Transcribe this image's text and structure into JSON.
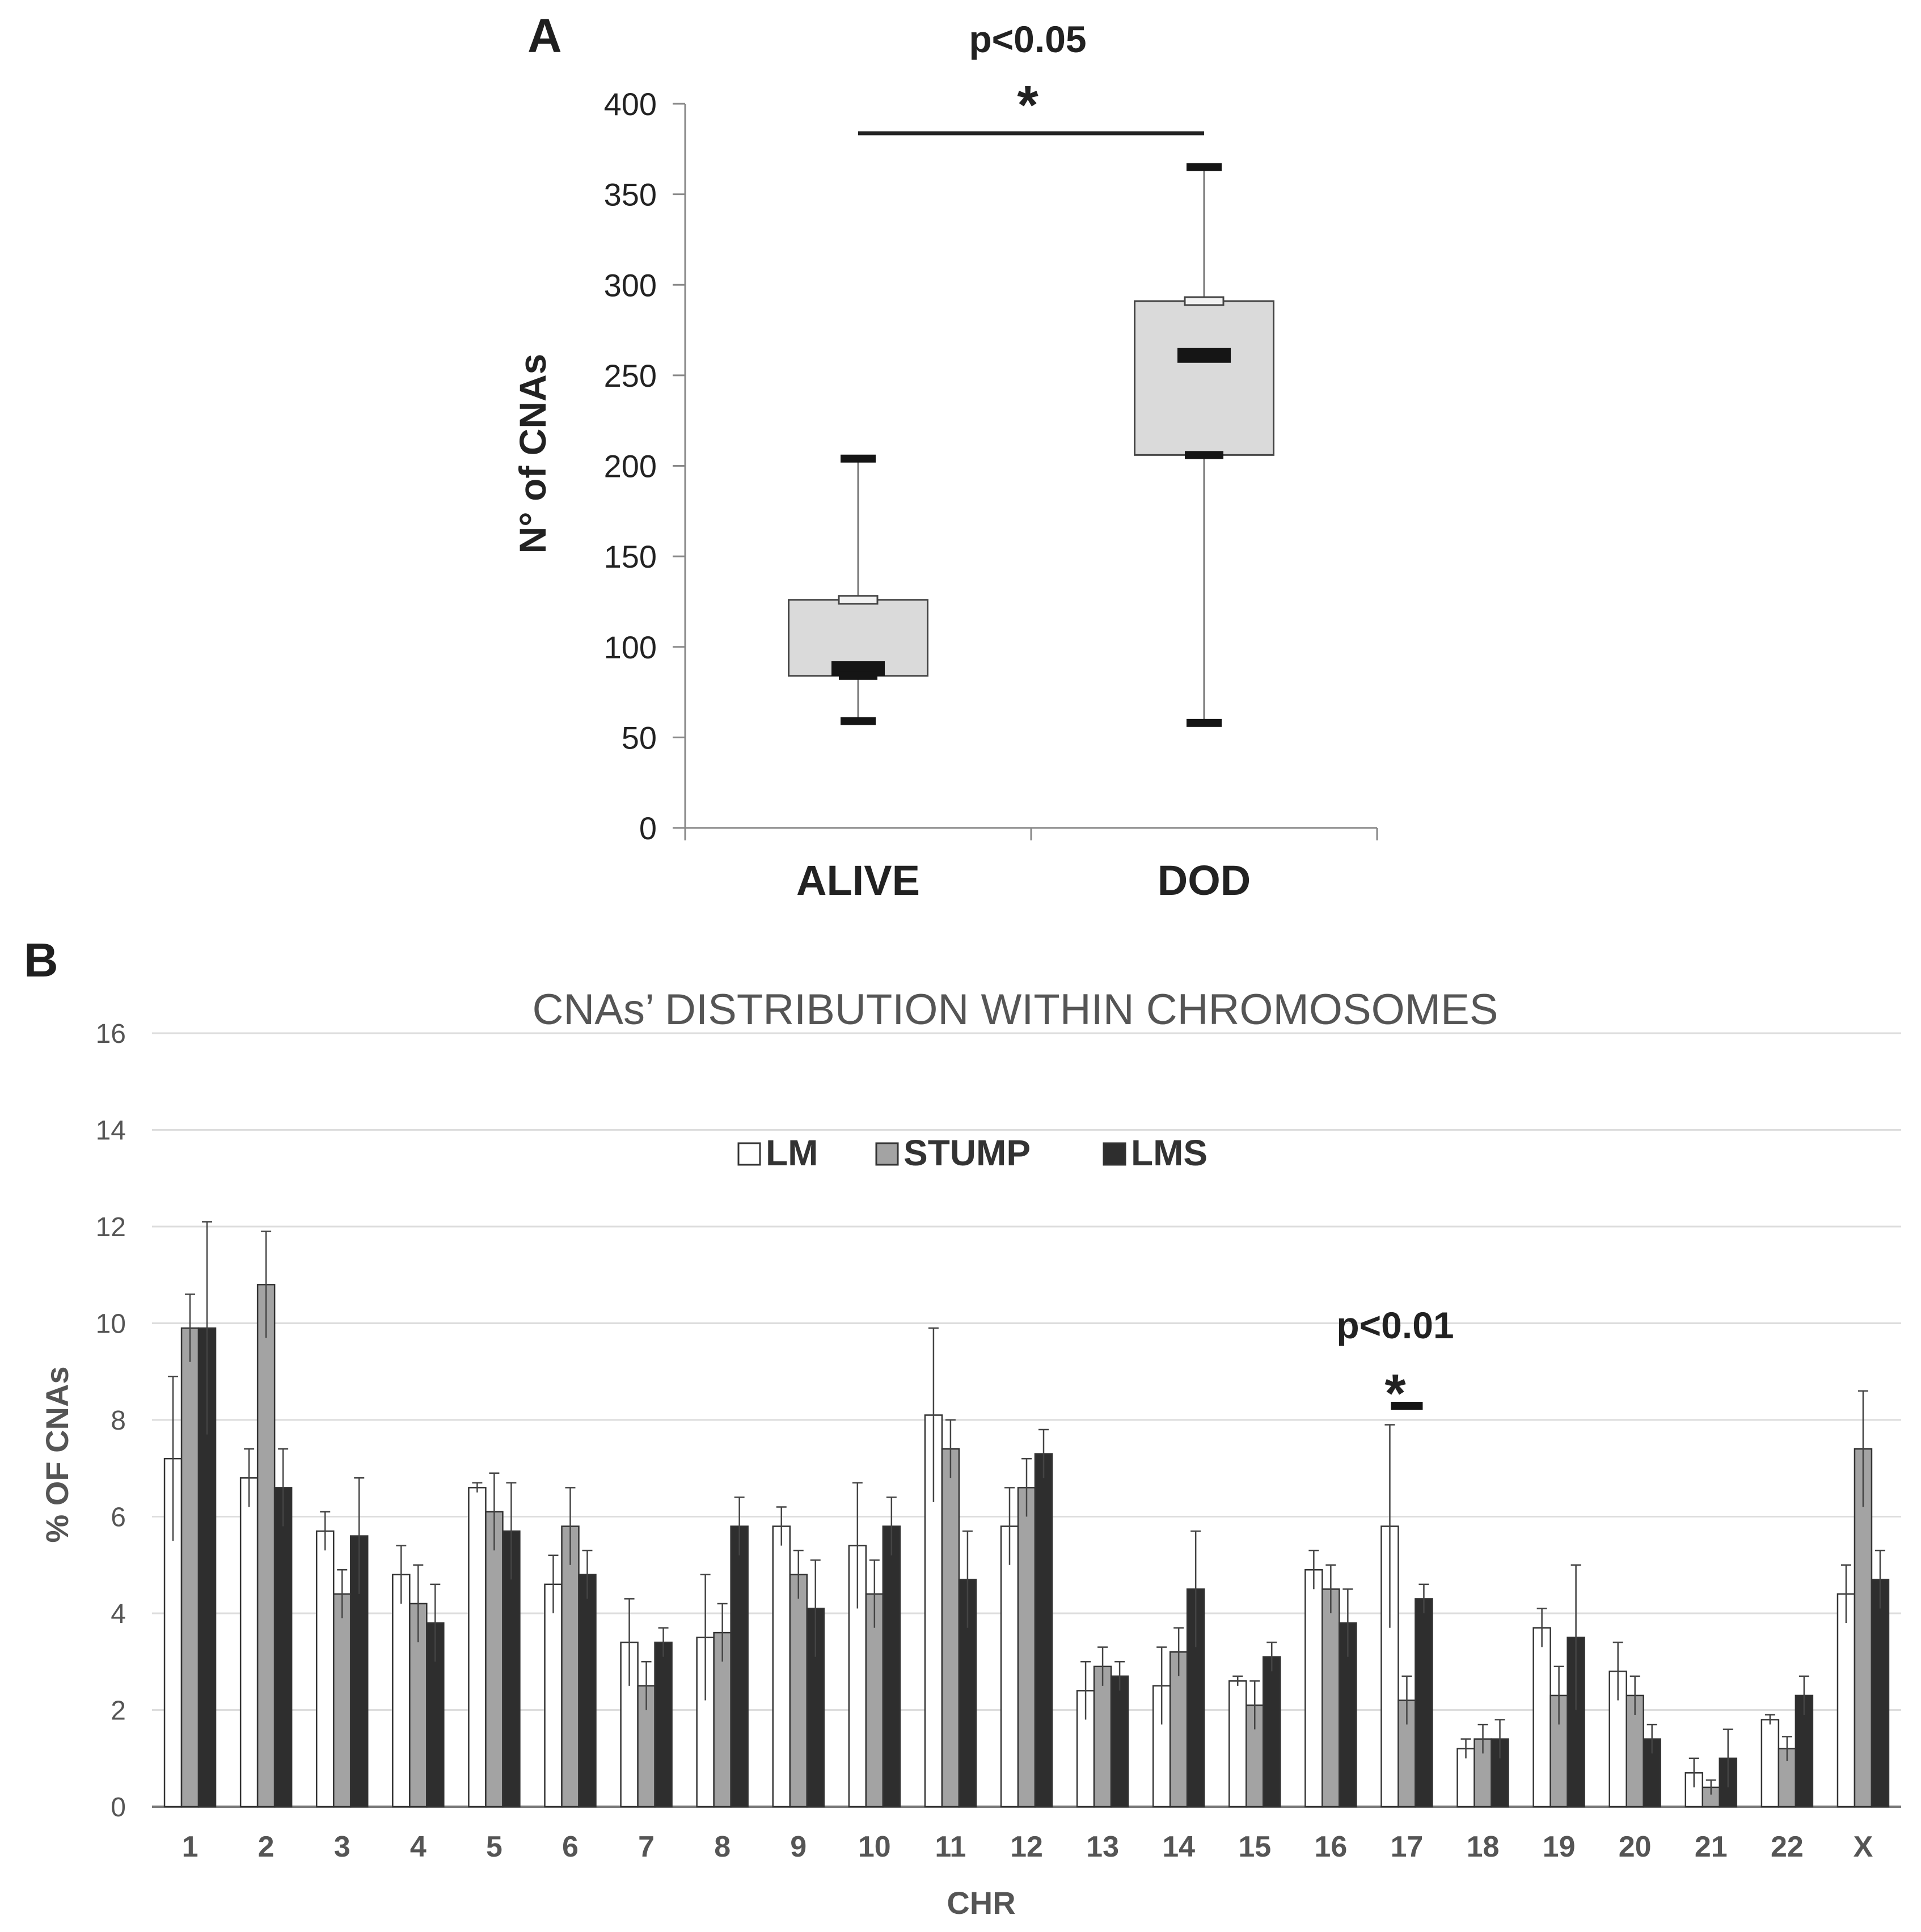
{
  "chart_data": [
    {
      "panel": "A",
      "type": "box",
      "title": "",
      "ylabel": "N° of CNAs",
      "xlabel": "",
      "ylim": [
        0,
        400
      ],
      "yticks": [
        "0",
        "50",
        "100",
        "150",
        "200",
        "250",
        "300",
        "350",
        "400"
      ],
      "categories": [
        "ALIVE",
        "DOD"
      ],
      "boxes": [
        {
          "name": "ALIVE",
          "min": 59,
          "q1": 84,
          "median": 88,
          "q3": 126,
          "max": 204
        },
        {
          "name": "DOD",
          "min": 58,
          "q1": 206,
          "median": 261,
          "q3": 291,
          "max": 365
        }
      ],
      "annotation": {
        "text": "p<0.05",
        "star": "*"
      }
    },
    {
      "panel": "B",
      "type": "bar",
      "title": "CNAs’ DISTRIBUTION WITHIN CHROMOSOMES",
      "xlabel": "CHR",
      "ylabel": "% OF CNAs",
      "ylim": [
        0,
        16
      ],
      "yticks": [
        "0",
        "2",
        "4",
        "6",
        "8",
        "10",
        "12",
        "14",
        "16"
      ],
      "grid": true,
      "legend_position": "top-center",
      "categories": [
        "1",
        "2",
        "3",
        "4",
        "5",
        "6",
        "7",
        "8",
        "9",
        "10",
        "11",
        "12",
        "13",
        "14",
        "15",
        "16",
        "17",
        "18",
        "19",
        "20",
        "21",
        "22",
        "X"
      ],
      "series": [
        {
          "name": "LM",
          "color": "#ffffff",
          "values": [
            7.2,
            6.8,
            5.7,
            4.8,
            6.6,
            4.6,
            3.4,
            3.5,
            5.8,
            5.4,
            8.1,
            5.8,
            2.4,
            2.5,
            2.6,
            4.9,
            5.8,
            1.2,
            3.7,
            2.8,
            0.7,
            1.8,
            4.4
          ],
          "errors": [
            1.7,
            0.6,
            0.4,
            0.6,
            0.1,
            0.6,
            0.9,
            1.3,
            0.4,
            1.3,
            1.8,
            0.8,
            0.6,
            0.8,
            0.1,
            0.4,
            2.1,
            0.2,
            0.4,
            0.6,
            0.3,
            0.1,
            0.6
          ]
        },
        {
          "name": "STUMP",
          "color": "#a3a3a3",
          "values": [
            9.9,
            10.8,
            4.4,
            4.2,
            6.1,
            5.8,
            2.5,
            3.6,
            4.8,
            4.4,
            7.4,
            6.6,
            2.9,
            3.2,
            2.1,
            4.5,
            2.2,
            1.4,
            2.3,
            2.3,
            0.4,
            1.2,
            7.4
          ],
          "errors": [
            0.7,
            1.1,
            0.5,
            0.8,
            0.8,
            0.8,
            0.5,
            0.6,
            0.5,
            0.7,
            0.6,
            0.6,
            0.4,
            0.5,
            0.5,
            0.5,
            0.5,
            0.3,
            0.6,
            0.4,
            0.15,
            0.25,
            1.2
          ]
        },
        {
          "name": "LMS",
          "color": "#2e2e2e",
          "values": [
            9.9,
            6.6,
            5.6,
            3.8,
            5.7,
            4.8,
            3.4,
            5.8,
            4.1,
            5.8,
            4.7,
            7.3,
            2.7,
            4.5,
            3.1,
            3.8,
            4.3,
            1.4,
            3.5,
            1.4,
            1.0,
            2.3,
            4.7
          ],
          "errors": [
            2.2,
            0.8,
            1.2,
            0.8,
            1.0,
            0.5,
            0.3,
            0.6,
            1.0,
            0.6,
            1.0,
            0.5,
            0.3,
            1.2,
            0.3,
            0.7,
            0.3,
            0.4,
            1.5,
            0.3,
            0.6,
            0.4,
            0.6
          ]
        }
      ],
      "annotation": {
        "text": "p<0.01",
        "star": "*",
        "category": "17"
      }
    }
  ],
  "panels": {
    "a_letter": "A",
    "b_letter": "B"
  }
}
